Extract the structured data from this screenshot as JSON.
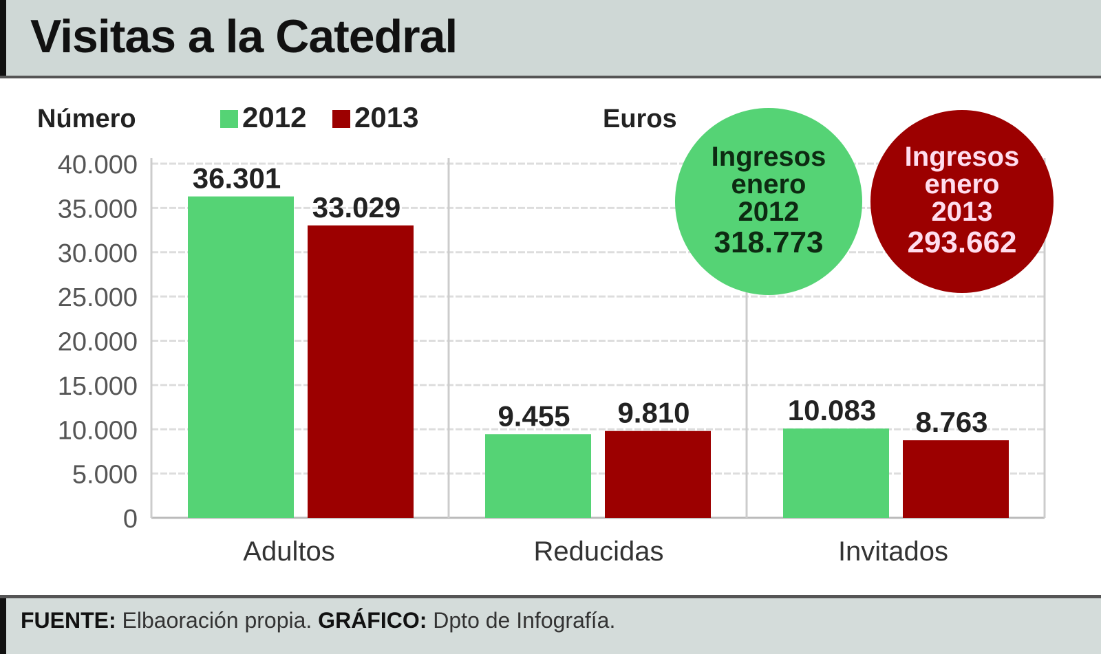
{
  "title": "Visitas a la Catedral",
  "footer": {
    "source_label": "FUENTE:",
    "source": "Elbaoración propia.",
    "graphic_label": "GRÁFICO:",
    "graphic": "Dpto de Infografía."
  },
  "colors": {
    "2012": "#55d375",
    "2013": "#9c0000"
  },
  "chart_data": {
    "type": "bar",
    "title": "Visitas a la Catedral",
    "ylabel": "Número",
    "ylim": [
      0,
      40000
    ],
    "yticks": [
      "0",
      "5.000",
      "10.000",
      "15.000",
      "20.000",
      "25.000",
      "30.000",
      "35.000",
      "40.000"
    ],
    "ytick_values": [
      0,
      5000,
      10000,
      15000,
      20000,
      25000,
      30000,
      35000,
      40000
    ],
    "categories": [
      "Adultos",
      "Reducidas",
      "Invitados"
    ],
    "series": [
      {
        "name": "2012",
        "values": [
          36301,
          9455,
          10083
        ],
        "labels": [
          "36.301",
          "9.455",
          "10.083"
        ]
      },
      {
        "name": "2013",
        "values": [
          33029,
          9810,
          8763
        ],
        "labels": [
          "33.029",
          "9.810",
          "8.763"
        ]
      }
    ],
    "legend_placement": "top-left",
    "grid": true,
    "euros": {
      "label": "Euros",
      "items": [
        {
          "line1": "Ingresos",
          "line2": "enero",
          "year": "2012",
          "value": "318.773"
        },
        {
          "line1": "Ingresos",
          "line2": "enero",
          "year": "2013",
          "value": "293.662"
        }
      ]
    }
  }
}
